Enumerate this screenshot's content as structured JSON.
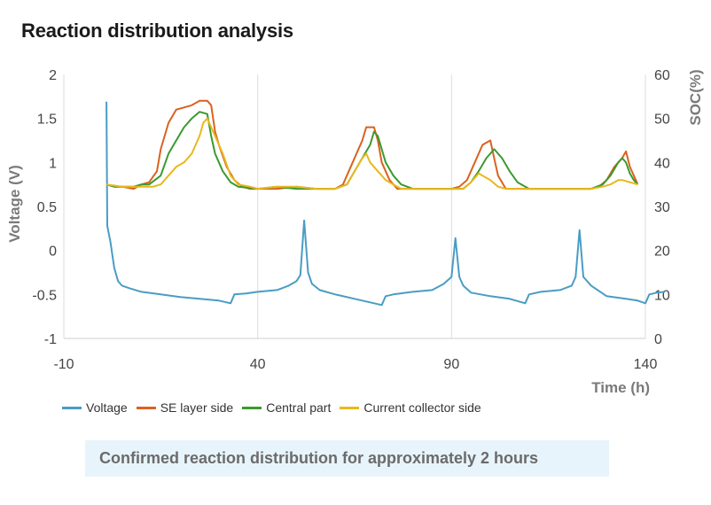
{
  "title": "Reaction distribution analysis",
  "note": "Confirmed reaction distribution for approximately 2 hours",
  "chart_data": {
    "type": "line",
    "xlabel": "Time (h)",
    "ylabel": "Voltage (V)",
    "y2label": "SOC(%)",
    "xlim": [
      -10,
      140
    ],
    "ylim": [
      -1,
      2
    ],
    "y2lim": [
      0,
      60
    ],
    "xticks": [
      "-10",
      "40",
      "90",
      "140"
    ],
    "yticks": [
      "2",
      "1.5",
      "1",
      "0.5",
      "0",
      "-0.5",
      "-1"
    ],
    "y2ticks": [
      "60",
      "50",
      "40",
      "30",
      "20",
      "10",
      "0"
    ],
    "grid": "vertical",
    "legend_position": "bottom-left",
    "series": [
      {
        "name": "Voltage",
        "axis": "left",
        "color": "#4a9cc4",
        "points": [
          [
            1,
            1.69
          ],
          [
            1.2,
            0.28
          ],
          [
            2,
            0.1
          ],
          [
            3,
            -0.2
          ],
          [
            4,
            -0.35
          ],
          [
            5,
            -0.4
          ],
          [
            7,
            -0.43
          ],
          [
            10,
            -0.47
          ],
          [
            15,
            -0.5
          ],
          [
            20,
            -0.53
          ],
          [
            25,
            -0.55
          ],
          [
            30,
            -0.57
          ],
          [
            33,
            -0.6
          ],
          [
            34,
            -0.5
          ],
          [
            37,
            -0.49
          ],
          [
            40,
            -0.47
          ],
          [
            45,
            -0.45
          ],
          [
            48,
            -0.4
          ],
          [
            50,
            -0.35
          ],
          [
            51,
            -0.28
          ],
          [
            52,
            0.34
          ],
          [
            53,
            -0.25
          ],
          [
            54,
            -0.38
          ],
          [
            56,
            -0.45
          ],
          [
            60,
            -0.5
          ],
          [
            65,
            -0.55
          ],
          [
            70,
            -0.6
          ],
          [
            72,
            -0.62
          ],
          [
            73,
            -0.52
          ],
          [
            75,
            -0.5
          ],
          [
            80,
            -0.47
          ],
          [
            85,
            -0.45
          ],
          [
            88,
            -0.38
          ],
          [
            90,
            -0.3
          ],
          [
            91,
            0.14
          ],
          [
            92,
            -0.3
          ],
          [
            93,
            -0.4
          ],
          [
            95,
            -0.48
          ],
          [
            100,
            -0.52
          ],
          [
            105,
            -0.55
          ],
          [
            109,
            -0.6
          ],
          [
            110,
            -0.5
          ],
          [
            113,
            -0.47
          ],
          [
            118,
            -0.45
          ],
          [
            121,
            -0.4
          ],
          [
            122,
            -0.3
          ],
          [
            123,
            0.23
          ],
          [
            124,
            -0.3
          ],
          [
            126,
            -0.4
          ],
          [
            130,
            -0.52
          ],
          [
            135,
            -0.55
          ],
          [
            138,
            -0.57
          ],
          [
            140,
            -0.6
          ],
          [
            141,
            -0.5
          ],
          [
            143,
            -0.48
          ],
          [
            145,
            -0.47
          ]
        ]
      },
      {
        "name": "SE layer side",
        "axis": "right",
        "color": "#d9621f",
        "points": [
          [
            1,
            35
          ],
          [
            3,
            34.5
          ],
          [
            5,
            34.5
          ],
          [
            8,
            34
          ],
          [
            10,
            35
          ],
          [
            12,
            35.5
          ],
          [
            14,
            38
          ],
          [
            15,
            43
          ],
          [
            17,
            49
          ],
          [
            19,
            52
          ],
          [
            21,
            52.5
          ],
          [
            23,
            53
          ],
          [
            25,
            54
          ],
          [
            27,
            54
          ],
          [
            28,
            53
          ],
          [
            29,
            47
          ],
          [
            30,
            44
          ],
          [
            32,
            39
          ],
          [
            34,
            36
          ],
          [
            36,
            34.5
          ],
          [
            38,
            34
          ],
          [
            40,
            34
          ],
          [
            45,
            34
          ],
          [
            50,
            34.5
          ],
          [
            55,
            34
          ],
          [
            60,
            34
          ],
          [
            62,
            35
          ],
          [
            64,
            39
          ],
          [
            67,
            45
          ],
          [
            68,
            48
          ],
          [
            70,
            48
          ],
          [
            71,
            45
          ],
          [
            72,
            40
          ],
          [
            74,
            36
          ],
          [
            76,
            34
          ],
          [
            80,
            34
          ],
          [
            85,
            34
          ],
          [
            90,
            34
          ],
          [
            92,
            34.5
          ],
          [
            94,
            36
          ],
          [
            96,
            40
          ],
          [
            98,
            44
          ],
          [
            100,
            45
          ],
          [
            101,
            41
          ],
          [
            102,
            37
          ],
          [
            104,
            34
          ],
          [
            108,
            34
          ],
          [
            113,
            34
          ],
          [
            118,
            34
          ],
          [
            123,
            34
          ],
          [
            126,
            34
          ],
          [
            128,
            34.5
          ],
          [
            130,
            36
          ],
          [
            132,
            39
          ],
          [
            134,
            41
          ],
          [
            135,
            42.5
          ],
          [
            136,
            39
          ],
          [
            137,
            37
          ],
          [
            138,
            35
          ]
        ]
      },
      {
        "name": "Central part",
        "axis": "right",
        "color": "#3a9a2e",
        "points": [
          [
            1,
            35
          ],
          [
            3,
            34.5
          ],
          [
            5,
            34.5
          ],
          [
            8,
            34.5
          ],
          [
            10,
            35
          ],
          [
            12,
            35
          ],
          [
            15,
            37
          ],
          [
            17,
            42
          ],
          [
            19,
            45
          ],
          [
            21,
            48
          ],
          [
            23,
            50
          ],
          [
            25,
            51.5
          ],
          [
            27,
            51
          ],
          [
            28,
            46
          ],
          [
            29,
            42
          ],
          [
            31,
            38
          ],
          [
            33,
            35.5
          ],
          [
            35,
            34.5
          ],
          [
            40,
            34
          ],
          [
            45,
            34.5
          ],
          [
            50,
            34
          ],
          [
            55,
            34
          ],
          [
            60,
            34
          ],
          [
            63,
            35
          ],
          [
            65,
            38
          ],
          [
            67,
            41
          ],
          [
            69,
            44
          ],
          [
            70,
            47
          ],
          [
            71,
            46
          ],
          [
            72,
            43
          ],
          [
            73,
            40
          ],
          [
            75,
            37
          ],
          [
            77,
            35
          ],
          [
            80,
            34
          ],
          [
            85,
            34
          ],
          [
            90,
            34
          ],
          [
            93,
            34
          ],
          [
            95,
            35.5
          ],
          [
            97,
            38
          ],
          [
            99,
            41
          ],
          [
            101,
            43
          ],
          [
            103,
            41
          ],
          [
            105,
            38
          ],
          [
            107,
            35.5
          ],
          [
            110,
            34
          ],
          [
            115,
            34
          ],
          [
            120,
            34
          ],
          [
            126,
            34
          ],
          [
            129,
            35
          ],
          [
            131,
            37
          ],
          [
            133,
            40
          ],
          [
            134,
            41
          ],
          [
            135,
            40
          ],
          [
            136,
            37.5
          ],
          [
            137,
            36
          ],
          [
            138,
            35
          ]
        ]
      },
      {
        "name": "Current collector side",
        "axis": "right",
        "color": "#e8b81c",
        "points": [
          [
            1,
            35
          ],
          [
            5,
            34.5
          ],
          [
            10,
            34.5
          ],
          [
            13,
            34.5
          ],
          [
            15,
            35
          ],
          [
            17,
            37
          ],
          [
            19,
            39
          ],
          [
            21,
            40
          ],
          [
            23,
            42
          ],
          [
            25,
            46
          ],
          [
            26,
            49
          ],
          [
            27,
            50
          ],
          [
            28,
            48
          ],
          [
            29,
            46
          ],
          [
            31,
            42
          ],
          [
            33,
            37
          ],
          [
            35,
            35
          ],
          [
            38,
            34.5
          ],
          [
            40,
            34
          ],
          [
            45,
            34.5
          ],
          [
            50,
            34.5
          ],
          [
            55,
            34
          ],
          [
            60,
            34
          ],
          [
            63,
            35
          ],
          [
            65,
            38
          ],
          [
            67,
            41
          ],
          [
            68,
            42
          ],
          [
            69,
            40
          ],
          [
            70,
            39
          ],
          [
            71,
            38
          ],
          [
            72,
            37
          ],
          [
            73,
            36
          ],
          [
            75,
            35
          ],
          [
            77,
            34
          ],
          [
            80,
            34
          ],
          [
            85,
            34
          ],
          [
            90,
            34
          ],
          [
            93,
            34
          ],
          [
            95,
            35.5
          ],
          [
            97,
            37.5
          ],
          [
            98,
            37
          ],
          [
            100,
            36
          ],
          [
            102,
            34.5
          ],
          [
            104,
            34
          ],
          [
            108,
            34
          ],
          [
            113,
            34
          ],
          [
            118,
            34
          ],
          [
            123,
            34
          ],
          [
            126,
            34
          ],
          [
            129,
            34.5
          ],
          [
            131,
            35
          ],
          [
            133,
            36
          ],
          [
            134,
            36
          ],
          [
            136,
            35.5
          ],
          [
            138,
            35
          ]
        ]
      }
    ]
  }
}
